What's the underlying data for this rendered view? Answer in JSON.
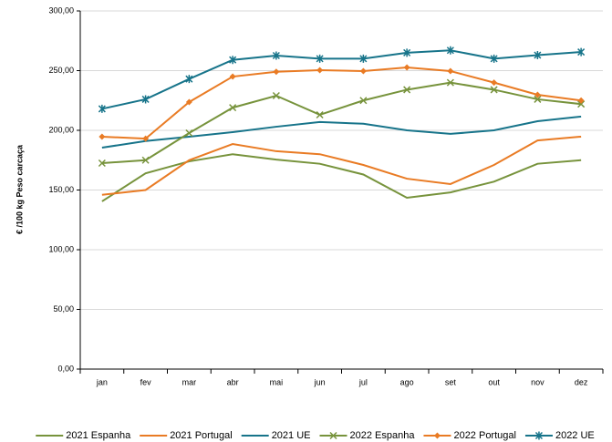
{
  "chart_data": {
    "type": "line",
    "y_label": "€ /100 kg Peso carcaça",
    "categories": [
      "jan",
      "fev",
      "mar",
      "abr",
      "mai",
      "jun",
      "jul",
      "ago",
      "set",
      "out",
      "nov",
      "dez"
    ],
    "ylim": [
      0,
      300
    ],
    "yticks": [
      {
        "value": 0,
        "label": "0,00"
      },
      {
        "value": 50,
        "label": "50,00"
      },
      {
        "value": 100,
        "label": "100,00"
      },
      {
        "value": 150,
        "label": "150,00"
      },
      {
        "value": 200,
        "label": "200,00"
      },
      {
        "value": 250,
        "label": "250,00"
      },
      {
        "value": 300,
        "label": "300,00"
      }
    ],
    "grid": true,
    "legend": "bottom",
    "series": [
      {
        "name": "2021 Espanha",
        "color": "#77933c",
        "marker": "none",
        "values": [
          140.5,
          164,
          174,
          180,
          175.5,
          172,
          163,
          143.5,
          148,
          157,
          172,
          175
        ]
      },
      {
        "name": "2021 Portugal",
        "color": "#e97b24",
        "marker": "none",
        "values": [
          146,
          150,
          175,
          188.5,
          182.5,
          180,
          171,
          159.5,
          155,
          171,
          191.5,
          194.7
        ]
      },
      {
        "name": "2021 UE",
        "color": "#17748a",
        "marker": "none",
        "values": [
          185.5,
          191,
          194.7,
          198.5,
          203,
          207,
          205.5,
          200,
          197,
          200,
          207.6,
          211.5
        ]
      },
      {
        "name": "2022 Espanha",
        "color": "#77933c",
        "marker": "x",
        "values": [
          172.5,
          175,
          197.7,
          219,
          229,
          213,
          225,
          234,
          240,
          234,
          226,
          222
        ]
      },
      {
        "name": "2022 Portugal",
        "color": "#e97b24",
        "marker": "diamond",
        "values": [
          194.7,
          193,
          223.7,
          245,
          249,
          250.4,
          249.6,
          252.7,
          249.6,
          240,
          229.8,
          225
        ]
      },
      {
        "name": "2022 UE",
        "color": "#17748a",
        "marker": "star",
        "values": [
          218,
          226,
          243,
          259,
          262.6,
          260,
          260,
          265,
          267,
          260,
          263,
          265.6
        ]
      }
    ]
  }
}
